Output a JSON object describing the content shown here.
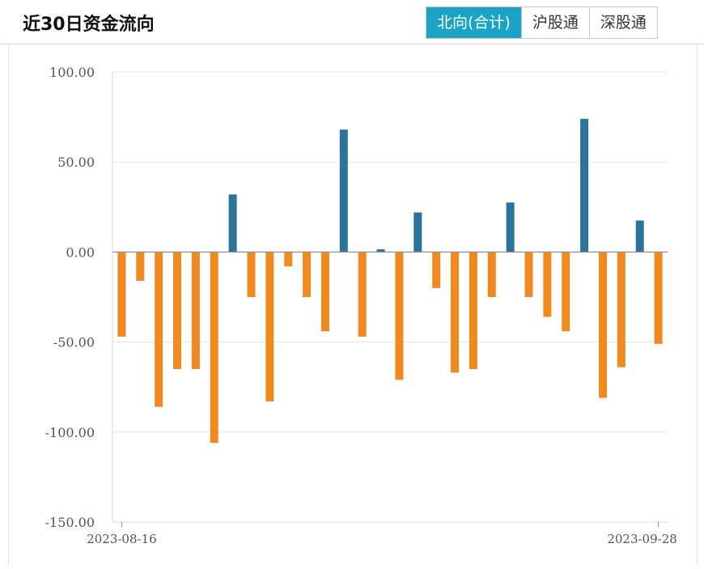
{
  "header": {
    "title": "近30日资金流向",
    "tabs": [
      {
        "label": "北向(合计)",
        "active": true
      },
      {
        "label": "沪股通",
        "active": false
      },
      {
        "label": "深股通",
        "active": false
      }
    ]
  },
  "colors": {
    "positive": "#2b7399",
    "negative": "#f0891f",
    "grid": "#e3e6ec",
    "accent": "#1aa3c4"
  },
  "chart_data": {
    "type": "bar",
    "ylim": [
      -150,
      100
    ],
    "yticks": [
      "100.00",
      "50.00",
      "0.00",
      "-50.00",
      "-100.00",
      "-150.00"
    ],
    "x_labels": [
      "2023-08-16",
      "2023-09-28"
    ],
    "values": [
      -47,
      -16,
      -86,
      -65,
      -65,
      -106,
      32,
      -25,
      -83,
      -8,
      -25,
      -44,
      68,
      -47,
      1.5,
      -71,
      22,
      -20,
      -67,
      -65,
      -25,
      27.5,
      -25,
      -36,
      -44,
      74,
      -81,
      -64,
      17.5,
      -51
    ]
  }
}
